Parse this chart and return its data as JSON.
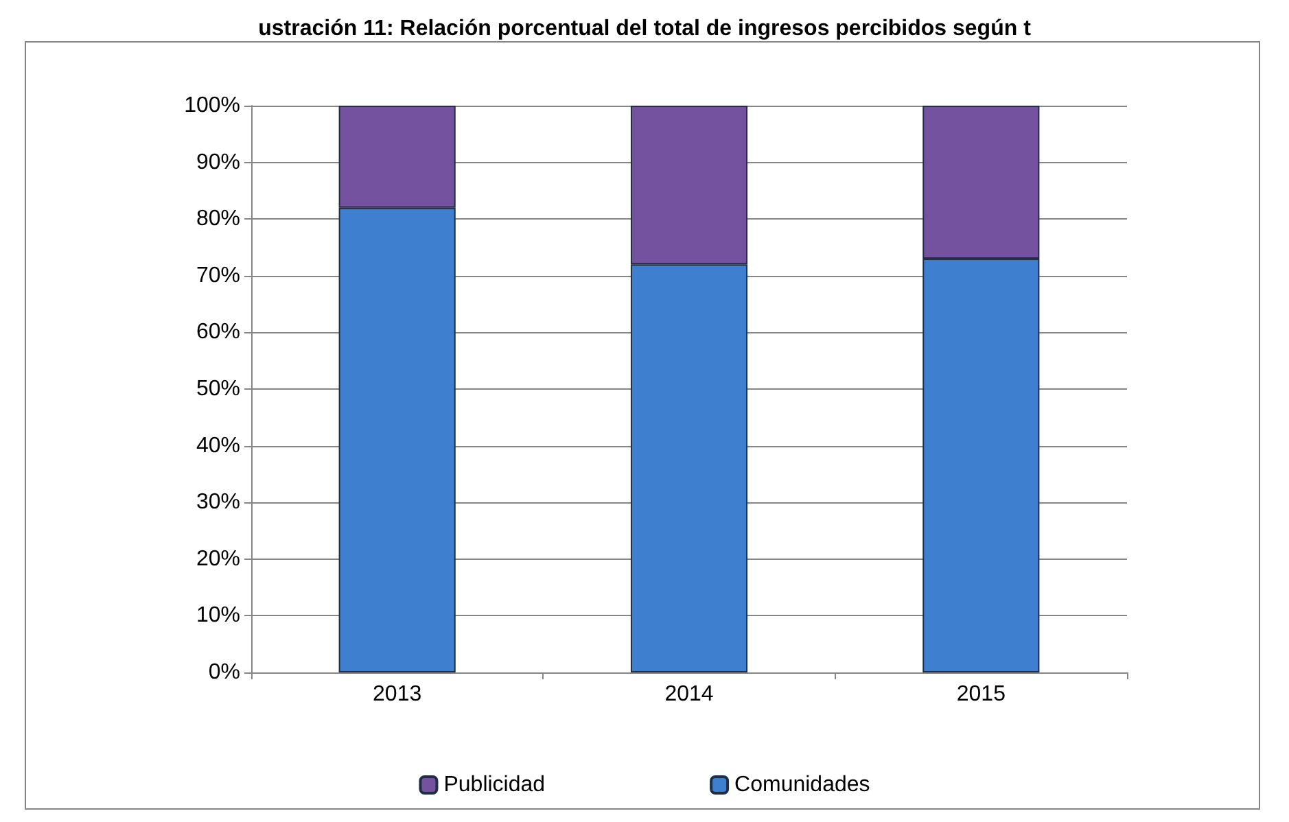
{
  "chart_data": {
    "type": "bar",
    "stacked": true,
    "title": "ustración 11: Relación porcentual del total de ingresos percibidos según t",
    "categories": [
      "2013",
      "2014",
      "2015"
    ],
    "series": [
      {
        "name": "Comunidades",
        "color": "#3f7fd0",
        "values": [
          82,
          72,
          73
        ]
      },
      {
        "name": "Publicidad",
        "color": "#7552a0",
        "values": [
          18,
          28,
          27
        ]
      }
    ],
    "ylim": [
      0,
      100
    ],
    "yticks": [
      {
        "value": 0,
        "label": "0%"
      },
      {
        "value": 10,
        "label": "10%"
      },
      {
        "value": 20,
        "label": "20%"
      },
      {
        "value": 30,
        "label": "30%"
      },
      {
        "value": 40,
        "label": "40%"
      },
      {
        "value": 50,
        "label": "50%"
      },
      {
        "value": 60,
        "label": "60%"
      },
      {
        "value": 70,
        "label": "70%"
      },
      {
        "value": 80,
        "label": "80%"
      },
      {
        "value": 90,
        "label": "90%"
      },
      {
        "value": 100,
        "label": "100%"
      }
    ],
    "grid": "y",
    "legend": "bottom"
  }
}
